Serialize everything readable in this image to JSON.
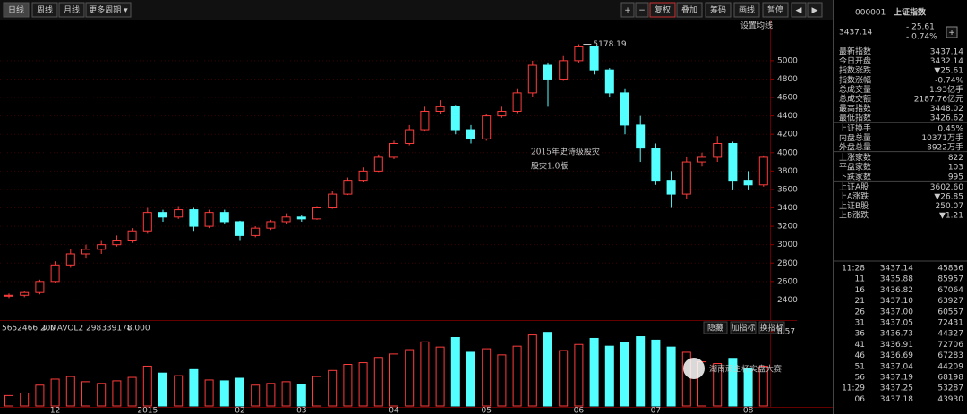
{
  "toolbar": {
    "left": [
      "日线",
      "周线",
      "月线",
      "更多周期 ▾"
    ],
    "right": [
      "+",
      "−",
      "复权",
      "叠加",
      "筹码",
      "画线",
      "暂停",
      "◀",
      "▶"
    ]
  },
  "chart_data": {
    "type": "candlestick",
    "ma_setting": "设置均线",
    "annotation": [
      "2015年史诗级股灾",
      "股灾1.0版"
    ],
    "ylim": [
      2200,
      5300
    ],
    "yticks": [
      2400,
      2600,
      2800,
      3000,
      3200,
      3400,
      3600,
      3800,
      4000,
      4200,
      4400,
      4600,
      4800,
      5000
    ],
    "x_labels": [
      "12",
      "2015",
      "02",
      "03",
      "04",
      "05",
      "06",
      "07",
      "08"
    ],
    "up_color": "#ff3c3c",
    "down_color": "#54ffff",
    "candles": [
      {
        "o": 2440,
        "h": 2470,
        "l": 2420,
        "c": 2450
      },
      {
        "o": 2450,
        "h": 2500,
        "l": 2430,
        "c": 2480
      },
      {
        "o": 2480,
        "h": 2620,
        "l": 2460,
        "c": 2600
      },
      {
        "o": 2600,
        "h": 2820,
        "l": 2580,
        "c": 2780
      },
      {
        "o": 2780,
        "h": 2950,
        "l": 2750,
        "c": 2900
      },
      {
        "o": 2900,
        "h": 3000,
        "l": 2850,
        "c": 2950
      },
      {
        "o": 2950,
        "h": 3050,
        "l": 2900,
        "c": 3000
      },
      {
        "o": 3000,
        "h": 3100,
        "l": 2980,
        "c": 3050
      },
      {
        "o": 3050,
        "h": 3180,
        "l": 3020,
        "c": 3150
      },
      {
        "o": 3150,
        "h": 3400,
        "l": 3120,
        "c": 3350
      },
      {
        "o": 3350,
        "h": 3380,
        "l": 3250,
        "c": 3300
      },
      {
        "o": 3300,
        "h": 3420,
        "l": 3280,
        "c": 3380
      },
      {
        "o": 3380,
        "h": 3400,
        "l": 3150,
        "c": 3200
      },
      {
        "o": 3200,
        "h": 3380,
        "l": 3180,
        "c": 3350
      },
      {
        "o": 3350,
        "h": 3380,
        "l": 3220,
        "c": 3250
      },
      {
        "o": 3250,
        "h": 3260,
        "l": 3050,
        "c": 3100
      },
      {
        "o": 3100,
        "h": 3200,
        "l": 3080,
        "c": 3180
      },
      {
        "o": 3180,
        "h": 3270,
        "l": 3160,
        "c": 3250
      },
      {
        "o": 3250,
        "h": 3340,
        "l": 3230,
        "c": 3300
      },
      {
        "o": 3300,
        "h": 3320,
        "l": 3250,
        "c": 3280
      },
      {
        "o": 3280,
        "h": 3420,
        "l": 3270,
        "c": 3400
      },
      {
        "o": 3400,
        "h": 3580,
        "l": 3390,
        "c": 3550
      },
      {
        "o": 3550,
        "h": 3730,
        "l": 3540,
        "c": 3700
      },
      {
        "o": 3700,
        "h": 3840,
        "l": 3680,
        "c": 3800
      },
      {
        "o": 3800,
        "h": 3980,
        "l": 3790,
        "c": 3950
      },
      {
        "o": 3950,
        "h": 4130,
        "l": 3930,
        "c": 4100
      },
      {
        "o": 4100,
        "h": 4300,
        "l": 4080,
        "c": 4250
      },
      {
        "o": 4250,
        "h": 4500,
        "l": 4230,
        "c": 4450
      },
      {
        "o": 4450,
        "h": 4570,
        "l": 4420,
        "c": 4500
      },
      {
        "o": 4500,
        "h": 4520,
        "l": 4200,
        "c": 4250
      },
      {
        "o": 4250,
        "h": 4300,
        "l": 4100,
        "c": 4150
      },
      {
        "o": 4150,
        "h": 4420,
        "l": 4130,
        "c": 4400
      },
      {
        "o": 4400,
        "h": 4500,
        "l": 4380,
        "c": 4450
      },
      {
        "o": 4450,
        "h": 4700,
        "l": 4430,
        "c": 4650
      },
      {
        "o": 4650,
        "h": 5000,
        "l": 4600,
        "c": 4950
      },
      {
        "o": 4950,
        "h": 4980,
        "l": 4500,
        "c": 4800
      },
      {
        "o": 4800,
        "h": 5050,
        "l": 4780,
        "c": 5000
      },
      {
        "o": 5000,
        "h": 5178.19,
        "l": 4980,
        "c": 5150
      },
      {
        "o": 5150,
        "h": 5160,
        "l": 4850,
        "c": 4900
      },
      {
        "o": 4900,
        "h": 4920,
        "l": 4600,
        "c": 4650
      },
      {
        "o": 4650,
        "h": 4700,
        "l": 4200,
        "c": 4300
      },
      {
        "o": 4300,
        "h": 4400,
        "l": 3900,
        "c": 4050
      },
      {
        "o": 4050,
        "h": 4100,
        "l": 3650,
        "c": 3700
      },
      {
        "o": 3700,
        "h": 3800,
        "l": 3400,
        "c": 3550
      },
      {
        "o": 3550,
        "h": 3950,
        "l": 3500,
        "c": 3900
      },
      {
        "o": 3900,
        "h": 4000,
        "l": 3850,
        "c": 3950
      },
      {
        "o": 3950,
        "h": 4180,
        "l": 3900,
        "c": 4100
      },
      {
        "o": 4100,
        "h": 4120,
        "l": 3600,
        "c": 3700
      },
      {
        "o": 3700,
        "h": 3800,
        "l": 3600,
        "c": 3650
      },
      {
        "o": 3650,
        "h": 3970,
        "l": 3630,
        "c": 3950
      }
    ],
    "volume": {
      "header": [
        "5652466.200",
        "↓",
        "MAVOL2 298339178.000",
        "↓"
      ],
      "buttons": [
        "隐藏",
        "加指标",
        "换指标"
      ],
      "vlim": [
        0,
        9.5
      ],
      "vticks": [
        8.57
      ],
      "values": [
        1.2,
        1.5,
        2.4,
        3.1,
        3.4,
        2.8,
        2.6,
        2.9,
        3.3,
        4.6,
        3.8,
        3.5,
        4.2,
        3.0,
        2.9,
        3.2,
        2.4,
        2.6,
        2.8,
        2.5,
        3.4,
        4.1,
        4.8,
        5.0,
        5.6,
        6.0,
        6.5,
        7.4,
        6.8,
        7.9,
        6.2,
        6.6,
        5.9,
        6.9,
        8.2,
        8.5,
        6.4,
        7.1,
        7.8,
        6.9,
        7.3,
        8.0,
        7.6,
        6.8,
        6.2,
        5.1,
        4.9,
        5.5,
        4.3,
        4.6
      ]
    }
  },
  "panel": {
    "code": "000001",
    "name": "上证指数",
    "price": "3437.14",
    "change": "- 25.61",
    "pct": "- 0.74%",
    "plus": "+",
    "rows": [
      [
        "最新指数",
        "3437.14",
        "#3cff3c"
      ],
      [
        "今日开盘",
        "3432.14",
        "#3cff3c"
      ],
      [
        "指数涨跌",
        "▼25.61",
        "#3cff3c"
      ],
      [
        "指数涨幅",
        "-0.74%",
        "#3cff3c"
      ],
      [
        "总成交量",
        "1.93亿手",
        "#ffffff"
      ],
      [
        "总成交额",
        "2187.76亿元",
        "#ffffff"
      ],
      [
        "最高指数",
        "3448.02",
        "#3cff3c"
      ],
      [
        "最低指数",
        "3426.62",
        "#3cff3c"
      ],
      [
        "上证换手",
        "0.45%",
        "#ffffff"
      ],
      [
        "内盘总量",
        "10371万手",
        "#3cff3c"
      ],
      [
        "外盘总量",
        "8922万手",
        "#ff3c3c"
      ],
      [
        "上涨家数",
        "822",
        "#ff3c3c"
      ],
      [
        "平盘家数",
        "103",
        "#ffffff"
      ],
      [
        "下跌家数",
        "995",
        "#3cff3c"
      ],
      [
        "上证A股",
        "3602.60",
        "#3cff3c"
      ],
      [
        "上A涨跌",
        "▼26.85",
        "#3cff3c"
      ],
      [
        "上证B股",
        "250.07",
        "#3cff3c"
      ],
      [
        "上B涨跌",
        "▼1.21",
        "#3cff3c"
      ]
    ],
    "ticks": [
      [
        "11:28",
        "3437.14",
        "45836",
        "#ffffff"
      ],
      [
        "11",
        "3435.88",
        "85957",
        "#3cff3c"
      ],
      [
        "16",
        "3436.82",
        "67064",
        "#ff3c3c"
      ],
      [
        "21",
        "3437.10",
        "63927",
        "#ff3c3c"
      ],
      [
        "26",
        "3437.00",
        "60557",
        "#3cff3c"
      ],
      [
        "31",
        "3437.05",
        "72431",
        "#ff3c3c"
      ],
      [
        "36",
        "3436.73",
        "44327",
        "#3cff3c"
      ],
      [
        "41",
        "3436.91",
        "72706",
        "#ff3c3c"
      ],
      [
        "46",
        "3436.69",
        "67283",
        "#3cff3c"
      ],
      [
        "51",
        "3437.04",
        "44209",
        "#ff3c3c"
      ],
      [
        "56",
        "3437.19",
        "68198",
        "#ff3c3c"
      ],
      [
        "11:29",
        "3437.25",
        "53287",
        "#ff3c3c"
      ],
      [
        "06",
        "3437.18",
        "43930",
        "#3cff3c"
      ]
    ]
  },
  "watermark": "湖南顽主杯实盘大赛"
}
